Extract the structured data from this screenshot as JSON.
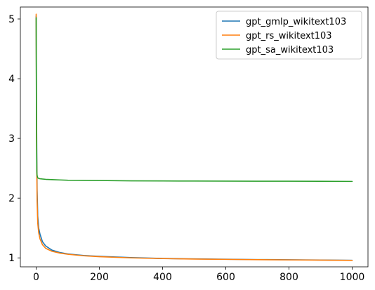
{
  "chart_data": {
    "type": "line",
    "title": "",
    "xlabel": "",
    "ylabel": "",
    "xlim": [
      -50,
      1050
    ],
    "ylim": [
      0.85,
      5.2
    ],
    "x_ticks": [
      0,
      200,
      400,
      600,
      800,
      1000
    ],
    "y_ticks": [
      1,
      2,
      3,
      4,
      5
    ],
    "grid": false,
    "legend_position": "top-right",
    "series": [
      {
        "name": "gpt_gmlp_wikitext103",
        "color": "#1f77b4",
        "x": [
          0,
          1,
          2,
          3,
          5,
          8,
          12,
          20,
          30,
          50,
          75,
          100,
          150,
          200,
          300,
          400,
          500,
          600,
          700,
          800,
          900,
          1000
        ],
        "y": [
          5.05,
          3.6,
          2.75,
          2.15,
          1.7,
          1.5,
          1.4,
          1.27,
          1.2,
          1.13,
          1.09,
          1.065,
          1.04,
          1.025,
          1.005,
          0.99,
          0.983,
          0.977,
          0.972,
          0.968,
          0.964,
          0.96
        ]
      },
      {
        "name": "gpt_rs_wikitext103",
        "color": "#ff7f0e",
        "x": [
          0,
          1,
          2,
          3,
          5,
          8,
          12,
          20,
          30,
          50,
          75,
          100,
          150,
          200,
          300,
          400,
          500,
          600,
          700,
          800,
          900,
          1000
        ],
        "y": [
          5.08,
          3.3,
          2.5,
          1.95,
          1.58,
          1.42,
          1.32,
          1.22,
          1.16,
          1.11,
          1.08,
          1.06,
          1.035,
          1.02,
          1.0,
          0.988,
          0.98,
          0.975,
          0.97,
          0.966,
          0.962,
          0.958
        ]
      },
      {
        "name": "gpt_sa_wikitext103",
        "color": "#2ca02c",
        "x": [
          0,
          1,
          2,
          3,
          5,
          8,
          12,
          20,
          30,
          50,
          75,
          100,
          150,
          200,
          300,
          400,
          500,
          600,
          700,
          800,
          900,
          1000
        ],
        "y": [
          5.02,
          3.0,
          2.45,
          2.38,
          2.34,
          2.33,
          2.325,
          2.32,
          2.315,
          2.31,
          2.305,
          2.3,
          2.298,
          2.295,
          2.29,
          2.288,
          2.286,
          2.285,
          2.284,
          2.283,
          2.282,
          2.28
        ]
      }
    ]
  }
}
